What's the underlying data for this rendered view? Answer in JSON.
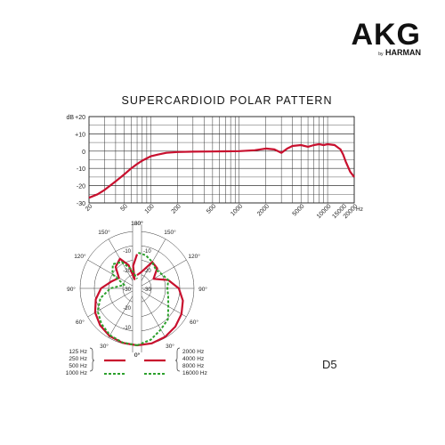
{
  "brand": {
    "logo_text": "AKG",
    "logo_byline_small": "by",
    "logo_byline": "HARMAN"
  },
  "model": "D5",
  "chart_data": [
    {
      "type": "line",
      "title": "SUPERCARDIOID POLAR PATTERN",
      "xlabel": "Hz",
      "ylabel": "dB",
      "x_scale": "log",
      "xlim": [
        20,
        20000
      ],
      "ylim": [
        -30,
        20
      ],
      "grid": true,
      "x_tick_labels": [
        "20",
        "50",
        "100",
        "200",
        "500",
        "1000",
        "2000",
        "5000",
        "10000",
        "15000",
        "20000"
      ],
      "x_tick_values": [
        20,
        50,
        100,
        200,
        500,
        1000,
        2000,
        5000,
        10000,
        15000,
        20000
      ],
      "y_tick_labels": [
        "+20",
        "+10",
        "0",
        "-10",
        "-20",
        "-30"
      ],
      "y_tick_values": [
        20,
        10,
        0,
        -10,
        -20,
        -30
      ],
      "series": [
        {
          "color": "#c8102e",
          "x": [
            20,
            25,
            30,
            40,
            50,
            60,
            70,
            80,
            100,
            120,
            150,
            200,
            300,
            500,
            700,
            1000,
            1500,
            2000,
            2500,
            3000,
            3500,
            4000,
            5000,
            6000,
            7000,
            8000,
            9000,
            10000,
            12000,
            14000,
            15000,
            16000,
            18000,
            20000
          ],
          "y": [
            -27,
            -25,
            -22.5,
            -17.5,
            -13.5,
            -10,
            -7.5,
            -5.5,
            -3,
            -2,
            -1,
            -0.5,
            -0.3,
            -0.2,
            -0.1,
            0,
            0.5,
            1.5,
            1,
            -1,
            1.5,
            3,
            3.5,
            2.5,
            3.5,
            4,
            3.5,
            4,
            3.5,
            1,
            -2,
            -6,
            -12,
            -15
          ]
        }
      ]
    },
    {
      "type": "polar",
      "angle_labels_left": [
        "180°",
        "150°",
        "120°",
        "90°",
        "60°",
        "30°",
        "0°"
      ],
      "angle_labels_right": [
        "180°",
        "150°",
        "120°",
        "90°",
        "60°",
        "30°",
        "0°"
      ],
      "radial_labels": [
        "-10",
        "-20",
        "-30",
        "-20",
        "-10"
      ],
      "radial_labels_right": [
        "-10",
        "-20",
        "-30"
      ],
      "rlim": [
        -30,
        0
      ],
      "series": [
        {
          "side": "left",
          "freq_group": "125 Hz / 250 Hz / 500 Hz",
          "style": "solid",
          "color": "#c8102e",
          "angles": [
            0,
            15,
            30,
            45,
            60,
            75,
            90,
            105,
            120,
            135,
            150,
            160,
            165,
            170,
            180
          ],
          "db": [
            0,
            -0.3,
            -1,
            -2.5,
            -4.5,
            -7.5,
            -11,
            -16,
            -19,
            -14,
            -12,
            -17,
            -25,
            -18,
            -12
          ]
        },
        {
          "side": "left",
          "freq_group": "1000 Hz",
          "style": "dashed",
          "color": "#2ca02c",
          "angles": [
            0,
            15,
            30,
            45,
            60,
            75,
            90,
            105,
            120,
            135,
            150,
            165,
            180
          ],
          "db": [
            0,
            -0.5,
            -1.5,
            -3.5,
            -6,
            -10,
            -16,
            -23,
            -15,
            -12,
            -14,
            -20,
            -25
          ]
        },
        {
          "side": "right",
          "freq_group": "2000 Hz / 4000 Hz / 8000 Hz",
          "style": "solid",
          "color": "#c8102e",
          "angles": [
            0,
            15,
            30,
            45,
            60,
            75,
            90,
            105,
            120,
            135,
            150,
            165,
            180
          ],
          "db": [
            0,
            0,
            -0.5,
            -1.5,
            -3,
            -5,
            -8,
            -13,
            -20,
            -15,
            -14,
            -21,
            -23
          ]
        },
        {
          "side": "right",
          "freq_group": "16000 Hz",
          "style": "dashed",
          "color": "#2ca02c",
          "angles": [
            0,
            15,
            30,
            45,
            60,
            75,
            90,
            105,
            120,
            135,
            150,
            165,
            180
          ],
          "db": [
            0,
            -2,
            -5,
            -7,
            -11,
            -13,
            -14,
            -13,
            -15,
            -16,
            -14,
            -12,
            -11
          ]
        }
      ],
      "legend": {
        "left_solid": [
          "125 Hz",
          "250 Hz",
          "500 Hz"
        ],
        "left_dashed": [
          "1000 Hz"
        ],
        "right_solid": [
          "2000 Hz",
          "4000 Hz",
          "8000 Hz"
        ],
        "right_dashed": [
          "16000 Hz"
        ]
      }
    }
  ]
}
